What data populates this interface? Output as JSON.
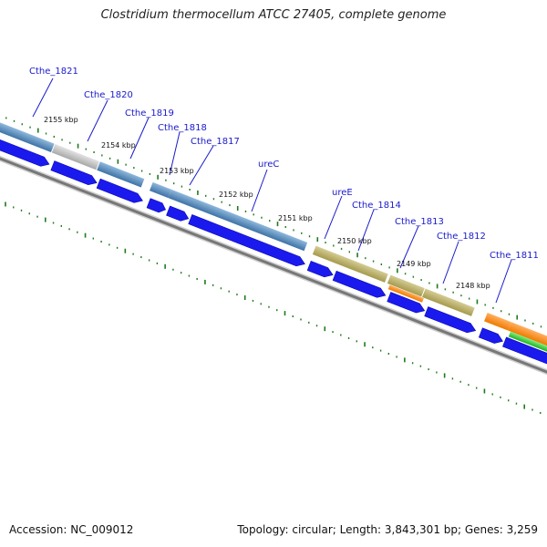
{
  "title": "Clostridium thermocellum ATCC 27405, complete genome",
  "accession": "Accession: NC_009012",
  "summary": "Topology: circular; Length: 3,843,301 bp; Genes: 3,259",
  "kbp_marks": [
    "2155 kbp",
    "2154 kbp",
    "2153 kbp",
    "2152 kbp",
    "2151 kbp",
    "2150 kbp",
    "2149 kbp",
    "2148 kbp"
  ],
  "genes": [
    "Cthe_1821",
    "Cthe_1820",
    "Cthe_1819",
    "Cthe_1818",
    "Cthe_1817",
    "ureC",
    "ureE",
    "Cthe_1814",
    "Cthe_1813",
    "Cthe_1812",
    "Cthe_1811"
  ],
  "colors": {
    "gene_label": "#1a1acc",
    "cds_arrow": "#1a1aee",
    "steel_blue": "#4f86b8",
    "gray": "#b8b8b8",
    "olive": "#b4aa62",
    "orange": "#ff8a1a",
    "green": "#3ccf3c",
    "backbone": "#777777",
    "tick": "#1d7a1d"
  }
}
